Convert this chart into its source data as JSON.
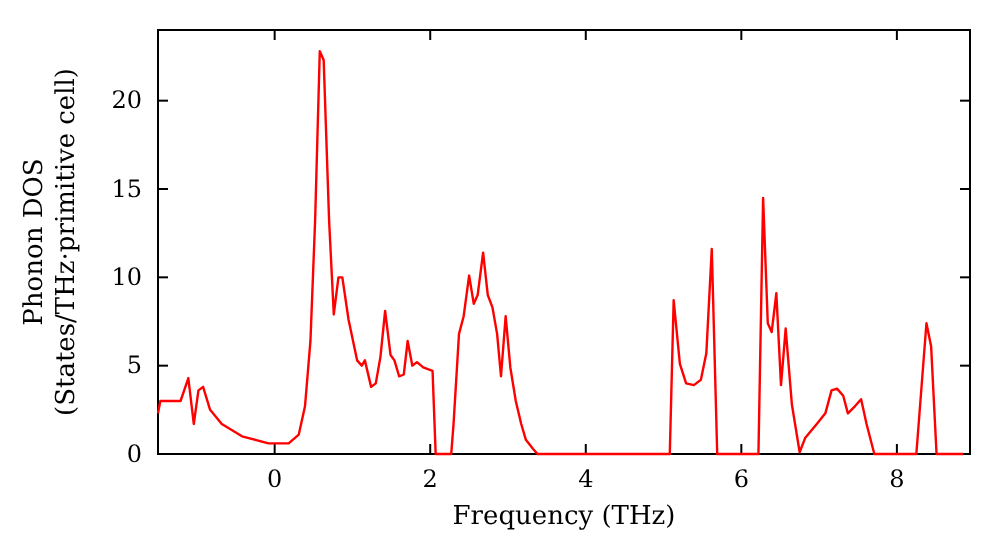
{
  "chart_data": {
    "type": "line",
    "xlabel": "Frequency (THz)",
    "ylabel": "Phonon DOS\n(States/THz·primitive cell)",
    "xlim": [
      -1.5,
      8.94
    ],
    "ylim": [
      0,
      24
    ],
    "xticks": [
      0,
      2,
      4,
      6,
      8
    ],
    "yticks": [
      0,
      5,
      10,
      15,
      20
    ],
    "grid": false,
    "marker": "none",
    "line_style": "solid",
    "series": [
      {
        "color": "#ff0000",
        "x": [
          -1.5,
          -1.47,
          -1.28,
          -1.21,
          -1.11,
          -1.04,
          -0.98,
          -0.92,
          -0.83,
          -0.68,
          -0.42,
          -0.08,
          0.18,
          0.31,
          0.39,
          0.46,
          0.52,
          0.58,
          0.63,
          0.7,
          0.76,
          0.82,
          0.87,
          0.95,
          1.06,
          1.12,
          1.16,
          1.24,
          1.3,
          1.36,
          1.42,
          1.49,
          1.54,
          1.6,
          1.66,
          1.71,
          1.77,
          1.83,
          1.91,
          2.03,
          2.07,
          2.27,
          2.3,
          2.37,
          2.43,
          2.5,
          2.56,
          2.61,
          2.68,
          2.74,
          2.8,
          2.86,
          2.91,
          2.97,
          3.03,
          3.1,
          3.17,
          3.23,
          3.32,
          3.38,
          5.08,
          5.13,
          5.21,
          5.29,
          5.39,
          5.48,
          5.55,
          5.62,
          5.69,
          6.22,
          6.28,
          6.34,
          6.39,
          6.45,
          6.51,
          6.57,
          6.65,
          6.75,
          6.82,
          6.97,
          7.08,
          7.16,
          7.23,
          7.31,
          7.37,
          7.46,
          7.54,
          7.61,
          7.71,
          8.25,
          8.38,
          8.44,
          8.51,
          8.85
        ],
        "values": [
          2.3,
          3.0,
          3.0,
          3.0,
          4.3,
          1.7,
          3.6,
          3.8,
          2.5,
          1.7,
          1.0,
          0.6,
          0.6,
          1.1,
          2.7,
          6.4,
          13.2,
          22.8,
          22.3,
          13.2,
          7.9,
          10.0,
          10.0,
          7.6,
          5.3,
          5.0,
          5.3,
          3.8,
          4.0,
          5.5,
          8.1,
          5.6,
          5.3,
          4.4,
          4.5,
          6.4,
          5.0,
          5.2,
          4.9,
          4.7,
          0,
          0,
          1.7,
          6.8,
          7.8,
          10.1,
          8.5,
          9.0,
          11.4,
          9.0,
          8.3,
          6.8,
          4.4,
          7.8,
          4.9,
          3.0,
          1.7,
          0.8,
          0.3,
          0,
          0,
          8.7,
          5.1,
          4.0,
          3.9,
          4.2,
          5.7,
          11.6,
          0,
          0,
          14.5,
          7.4,
          6.9,
          9.1,
          3.9,
          7.1,
          2.8,
          0.1,
          0.9,
          1.7,
          2.3,
          3.6,
          3.7,
          3.3,
          2.3,
          2.7,
          3.1,
          1.7,
          0,
          0,
          7.4,
          6.1,
          0,
          0
        ]
      }
    ]
  }
}
